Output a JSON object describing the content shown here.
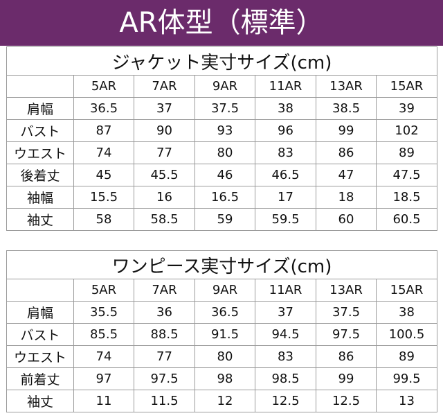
{
  "title": "AR体型（標準）",
  "sections": [
    {
      "title": "ジャケット実寸サイズ(cm)",
      "columns": [
        "5AR",
        "7AR",
        "9AR",
        "11AR",
        "13AR",
        "15AR"
      ],
      "rows": [
        {
          "label": "肩幅",
          "values": [
            "36.5",
            "37",
            "37.5",
            "38",
            "38.5",
            "39"
          ]
        },
        {
          "label": "バスト",
          "values": [
            "87",
            "90",
            "93",
            "96",
            "99",
            "102"
          ]
        },
        {
          "label": "ウエスト",
          "values": [
            "74",
            "77",
            "80",
            "83",
            "86",
            "89"
          ]
        },
        {
          "label": "後着丈",
          "values": [
            "45",
            "45.5",
            "46",
            "46.5",
            "47",
            "47.5"
          ]
        },
        {
          "label": "袖幅",
          "values": [
            "15.5",
            "16",
            "16.5",
            "17",
            "18",
            "18.5"
          ]
        },
        {
          "label": "袖丈",
          "values": [
            "58",
            "58.5",
            "59",
            "59.5",
            "60",
            "60.5"
          ]
        }
      ]
    },
    {
      "title": "ワンピース実寸サイズ(cm)",
      "columns": [
        "5AR",
        "7AR",
        "9AR",
        "11AR",
        "13AR",
        "15AR"
      ],
      "rows": [
        {
          "label": "肩幅",
          "values": [
            "35.5",
            "36",
            "36.5",
            "37",
            "37.5",
            "38"
          ]
        },
        {
          "label": "バスト",
          "values": [
            "85.5",
            "88.5",
            "91.5",
            "94.5",
            "97.5",
            "100.5"
          ]
        },
        {
          "label": "ウエスト",
          "values": [
            "74",
            "77",
            "80",
            "83",
            "86",
            "89"
          ]
        },
        {
          "label": "前着丈",
          "values": [
            "97",
            "97.5",
            "98",
            "98.5",
            "99",
            "99.5"
          ]
        },
        {
          "label": "袖丈",
          "values": [
            "11",
            "11.5",
            "12",
            "12.5",
            "12.5",
            "13"
          ]
        }
      ]
    }
  ],
  "colors": {
    "banner_background": "#6b2b6b",
    "banner_text": "#ffffff",
    "grid_line": "#9a9a9a",
    "corner_cell": "#f3f3f3"
  }
}
